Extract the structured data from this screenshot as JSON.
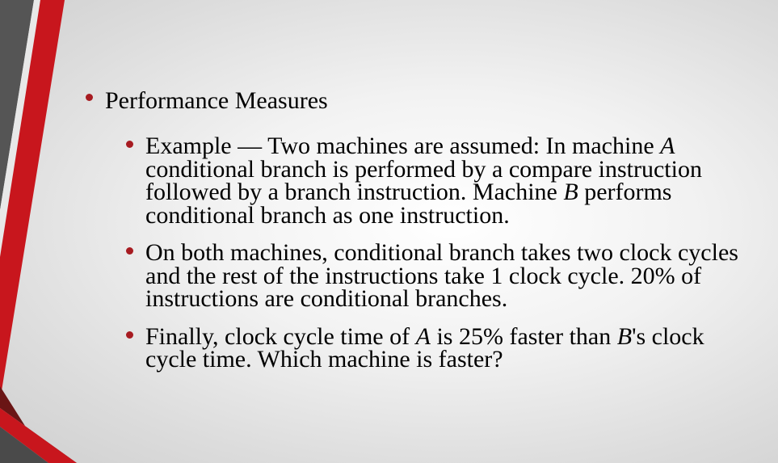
{
  "slide": {
    "title": "Performance Measures",
    "points": [
      {
        "segments": [
          {
            "text": "Example —  Two machines are assumed:  In machine "
          },
          {
            "text": "A",
            "italic": true
          },
          {
            "text": " conditional branch is performed by a compare instruction followed by a branch instruction.  Machine "
          },
          {
            "text": "B",
            "italic": true
          },
          {
            "text": " performs conditional branch as one instruction."
          }
        ]
      },
      {
        "segments": [
          {
            "text": "On both machines, conditional branch takes two clock cycles and the rest of the instructions take 1 clock cycle.  20% of instructions are conditional branches."
          }
        ]
      },
      {
        "segments": [
          {
            "text": "Finally, clock cycle time of "
          },
          {
            "text": "A",
            "italic": true
          },
          {
            "text": " is 25% faster than "
          },
          {
            "text": "B",
            "italic": true
          },
          {
            "text": "'s clock cycle time.  Which machine is faster?"
          }
        ]
      }
    ]
  },
  "theme": {
    "bullet_color": "#a71b21",
    "accent_red": "#c8161d",
    "accent_gray": "#4a4a4a"
  }
}
